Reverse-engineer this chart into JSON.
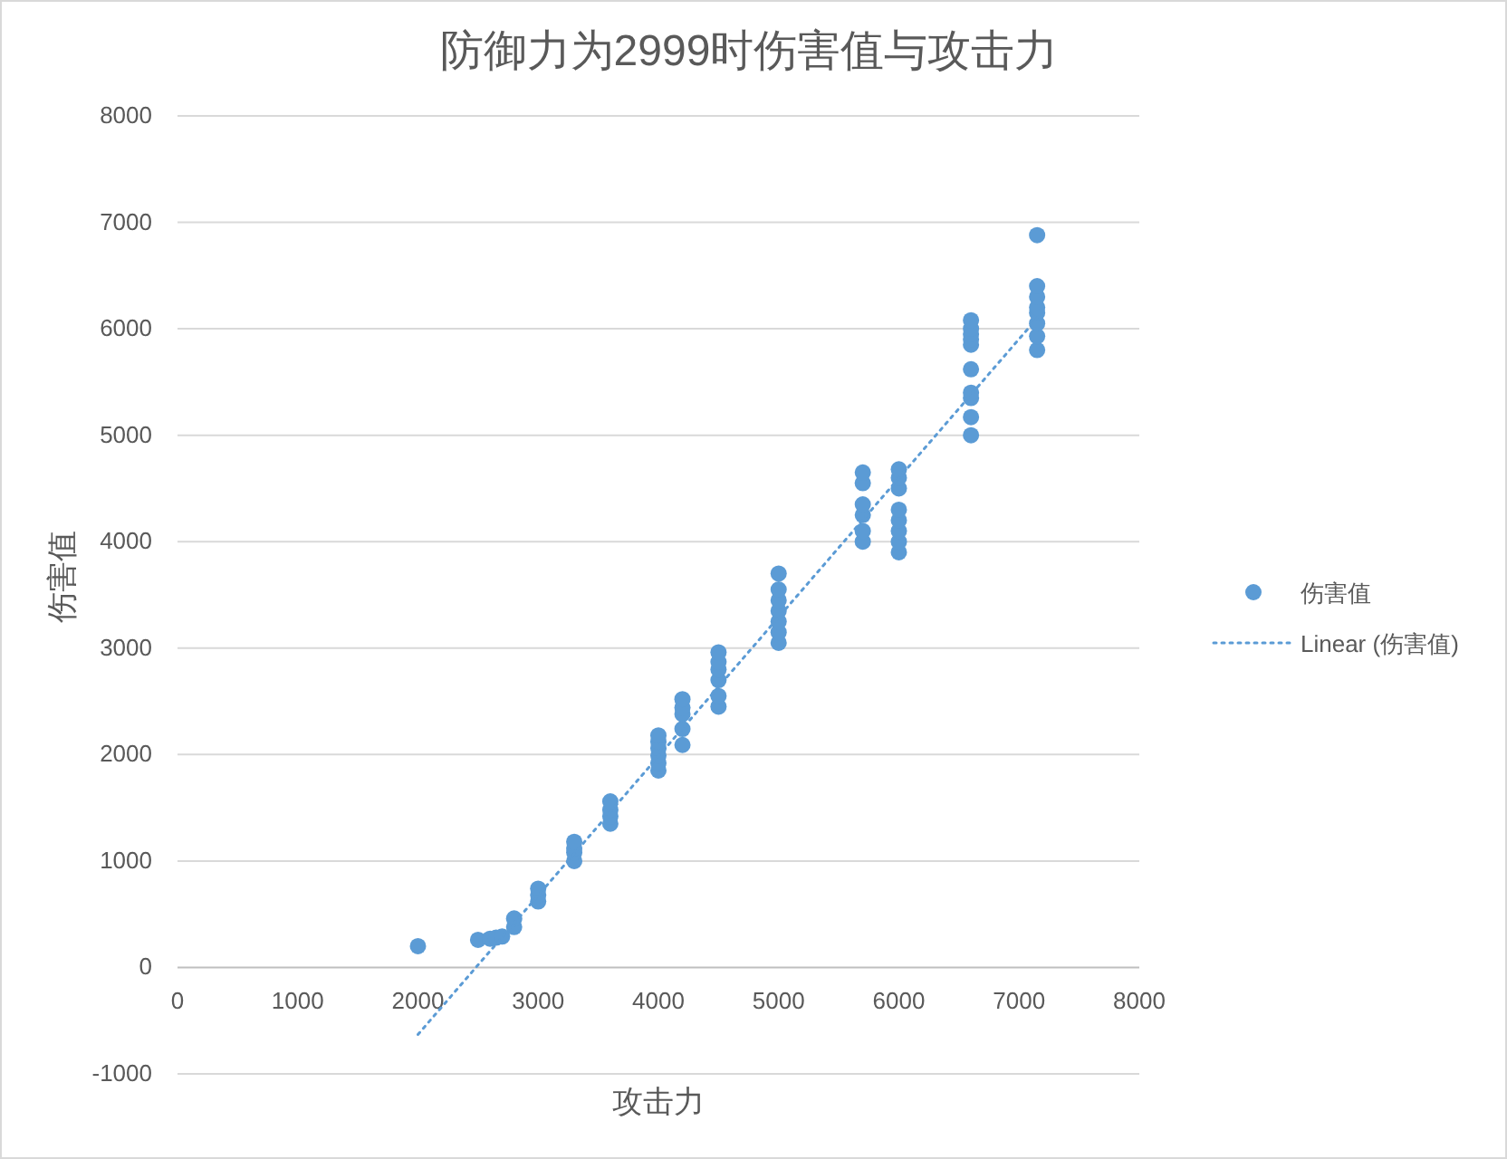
{
  "chart_data": {
    "type": "scatter",
    "title": "防御力为2999时伤害值与攻击力",
    "xlabel": "攻击力",
    "ylabel": "伤害值",
    "xlim": [
      0,
      8000
    ],
    "xticks": [
      0,
      1000,
      2000,
      3000,
      4000,
      5000,
      6000,
      7000,
      8000
    ],
    "ylim": [
      -1000,
      8000
    ],
    "yticks": [
      -1000,
      0,
      1000,
      2000,
      3000,
      4000,
      5000,
      6000,
      7000,
      8000
    ],
    "grid": "y",
    "legend": "right",
    "series": [
      {
        "name": "伤害值",
        "color": "#5b9bd5",
        "marker": "circle",
        "x": [
          2000,
          2500,
          2600,
          2650,
          2700,
          2800,
          2800,
          3000,
          3000,
          3000,
          3300,
          3300,
          3300,
          3300,
          3600,
          3600,
          3600,
          3600,
          4000,
          4000,
          4000,
          4000,
          4000,
          4000,
          4200,
          4200,
          4200,
          4200,
          4200,
          4500,
          4500,
          4500,
          4500,
          4500,
          4500,
          5000,
          5000,
          5000,
          5000,
          5000,
          5000,
          5000,
          5700,
          5700,
          5700,
          5700,
          5700,
          5700,
          6000,
          6000,
          6000,
          6000,
          6000,
          6000,
          6000,
          6000,
          6600,
          6600,
          6600,
          6600,
          6600,
          6600,
          6600,
          6600,
          6600,
          6600,
          7150,
          7150,
          7150,
          7150,
          7150,
          7150,
          7150,
          7150
        ],
        "values": [
          200,
          260,
          270,
          280,
          290,
          380,
          460,
          620,
          680,
          740,
          1000,
          1080,
          1120,
          1180,
          1350,
          1420,
          1480,
          1560,
          1850,
          1920,
          1990,
          2060,
          2120,
          2180,
          2090,
          2240,
          2380,
          2440,
          2520,
          2450,
          2550,
          2700,
          2800,
          2870,
          2960,
          3050,
          3150,
          3250,
          3350,
          3450,
          3550,
          3700,
          4000,
          4100,
          4250,
          4350,
          4550,
          4650,
          3900,
          4000,
          4100,
          4200,
          4300,
          4500,
          4600,
          4680,
          5000,
          5170,
          5350,
          5400,
          5620,
          5850,
          5900,
          5950,
          6000,
          6080,
          5800,
          5930,
          6050,
          6150,
          6200,
          6300,
          6400,
          6880
        ]
      },
      {
        "name": "Linear (伤害值)",
        "type": "line",
        "line_style": "dotted",
        "color": "#5b9bd5",
        "x": [
          2000,
          7150
        ],
        "values": [
          -630,
          6100
        ]
      }
    ]
  }
}
